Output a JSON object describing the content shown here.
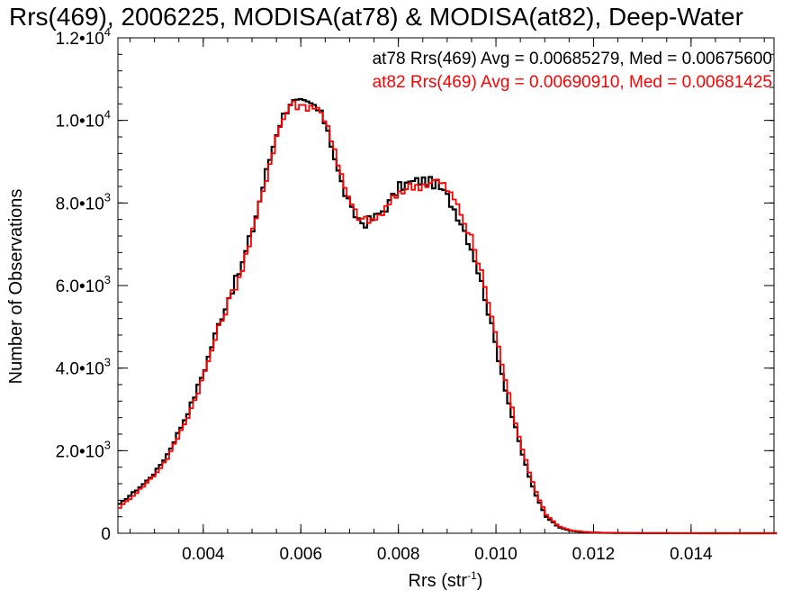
{
  "chart_data": {
    "type": "line",
    "title": "Rrs(469), 2006225, MODISA(at78) & MODISA(at82), Deep-Water",
    "xlabel": "Rrs (str",
    "xlabel_sup": "-1",
    "xlabel_end": ")",
    "ylabel": "Number of Observations",
    "xlim": [
      0.00225,
      0.0157
    ],
    "ylim": [
      0,
      12000
    ],
    "grid": false,
    "legend_position": "top-right",
    "x_ticks": [
      {
        "value": 0.004,
        "label": "0.004"
      },
      {
        "value": 0.006,
        "label": "0.006"
      },
      {
        "value": 0.008,
        "label": "0.008"
      },
      {
        "value": 0.01,
        "label": "0.010"
      },
      {
        "value": 0.012,
        "label": "0.012"
      },
      {
        "value": 0.014,
        "label": "0.014"
      }
    ],
    "y_ticks": [
      {
        "value": 0,
        "mantissa": "0",
        "exp": ""
      },
      {
        "value": 2000,
        "mantissa": "2.0•10",
        "exp": "3"
      },
      {
        "value": 4000,
        "mantissa": "4.0•10",
        "exp": "3"
      },
      {
        "value": 6000,
        "mantissa": "6.0•10",
        "exp": "3"
      },
      {
        "value": 8000,
        "mantissa": "8.0•10",
        "exp": "3"
      },
      {
        "value": 10000,
        "mantissa": "1.0•10",
        "exp": "4"
      },
      {
        "value": 12000,
        "mantissa": "1.2•10",
        "exp": "4"
      }
    ],
    "x": [
      0.00225,
      0.0025,
      0.00275,
      0.003,
      0.00325,
      0.0035,
      0.00375,
      0.004,
      0.00425,
      0.0045,
      0.00475,
      0.005,
      0.00525,
      0.0055,
      0.00575,
      0.006,
      0.00625,
      0.0065,
      0.00675,
      0.007,
      0.00725,
      0.0075,
      0.00775,
      0.008,
      0.00825,
      0.0085,
      0.00875,
      0.009,
      0.00925,
      0.0095,
      0.00975,
      0.01,
      0.01025,
      0.0105,
      0.01075,
      0.011,
      0.01125,
      0.0115,
      0.01175,
      0.012,
      0.01225,
      0.0125,
      0.013,
      0.0135,
      0.014,
      0.0145,
      0.015,
      0.0157
    ],
    "series": [
      {
        "name": "at78",
        "color": "#000000",
        "values": [
          700,
          950,
          1200,
          1500,
          1950,
          2550,
          3200,
          4000,
          4950,
          5750,
          6450,
          7450,
          8700,
          9850,
          10450,
          10400,
          10350,
          9900,
          8650,
          7800,
          7500,
          7650,
          7950,
          8400,
          8500,
          8550,
          8450,
          8100,
          7550,
          6800,
          5700,
          4350,
          3050,
          1950,
          1000,
          400,
          150,
          60,
          30,
          15,
          8,
          5,
          3,
          2,
          1,
          0,
          0,
          0
        ]
      },
      {
        "name": "at82",
        "color": "#ff0000",
        "values": [
          620,
          880,
          1150,
          1450,
          1850,
          2450,
          3100,
          3900,
          4850,
          5650,
          6350,
          7350,
          8600,
          9750,
          10400,
          10350,
          10350,
          10000,
          8800,
          7900,
          7550,
          7600,
          7900,
          8300,
          8400,
          8450,
          8550,
          8300,
          7750,
          7000,
          5950,
          4600,
          3250,
          2100,
          1100,
          450,
          170,
          70,
          35,
          18,
          10,
          6,
          3,
          2,
          1,
          0,
          0,
          0
        ]
      }
    ]
  },
  "legend": {
    "entry_1": "at78 Rrs(469) Avg = 0.00685279, Med = 0.00675600",
    "entry_1_color": "#000000",
    "entry_2": "at82 Rrs(469) Avg = 0.00690910, Med = 0.00681425",
    "entry_2_color": "#ff0000"
  }
}
